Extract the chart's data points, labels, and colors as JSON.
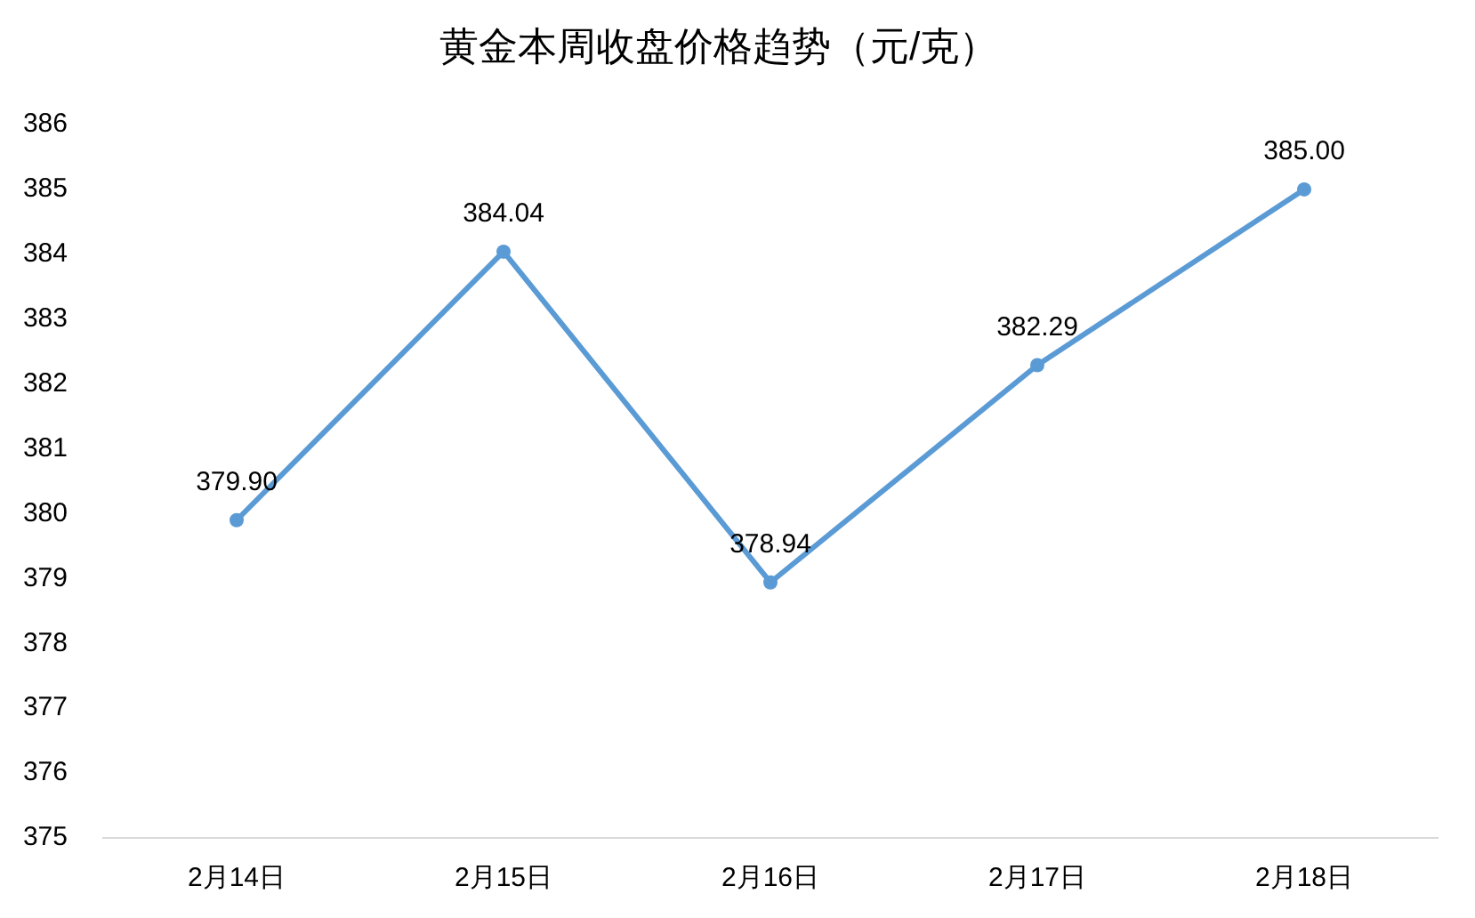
{
  "chart_data": {
    "type": "line",
    "title": "黄金本周收盘价格趋势（元/克）",
    "categories": [
      "2月14日",
      "2月15日",
      "2月16日",
      "2月17日",
      "2月18日"
    ],
    "series": [
      {
        "color": "#5b9bd5",
        "values": [
          379.9,
          384.04,
          378.94,
          382.29,
          385.0
        ],
        "value_labels": [
          "379.90",
          "384.04",
          "378.94",
          "382.29",
          "385.00"
        ]
      }
    ],
    "ylim": [
      375,
      386
    ],
    "yticks": [
      375,
      376,
      377,
      378,
      379,
      380,
      381,
      382,
      383,
      384,
      385,
      386
    ],
    "grid": false,
    "legend": false,
    "marker": "circle",
    "line_style": "solid"
  }
}
